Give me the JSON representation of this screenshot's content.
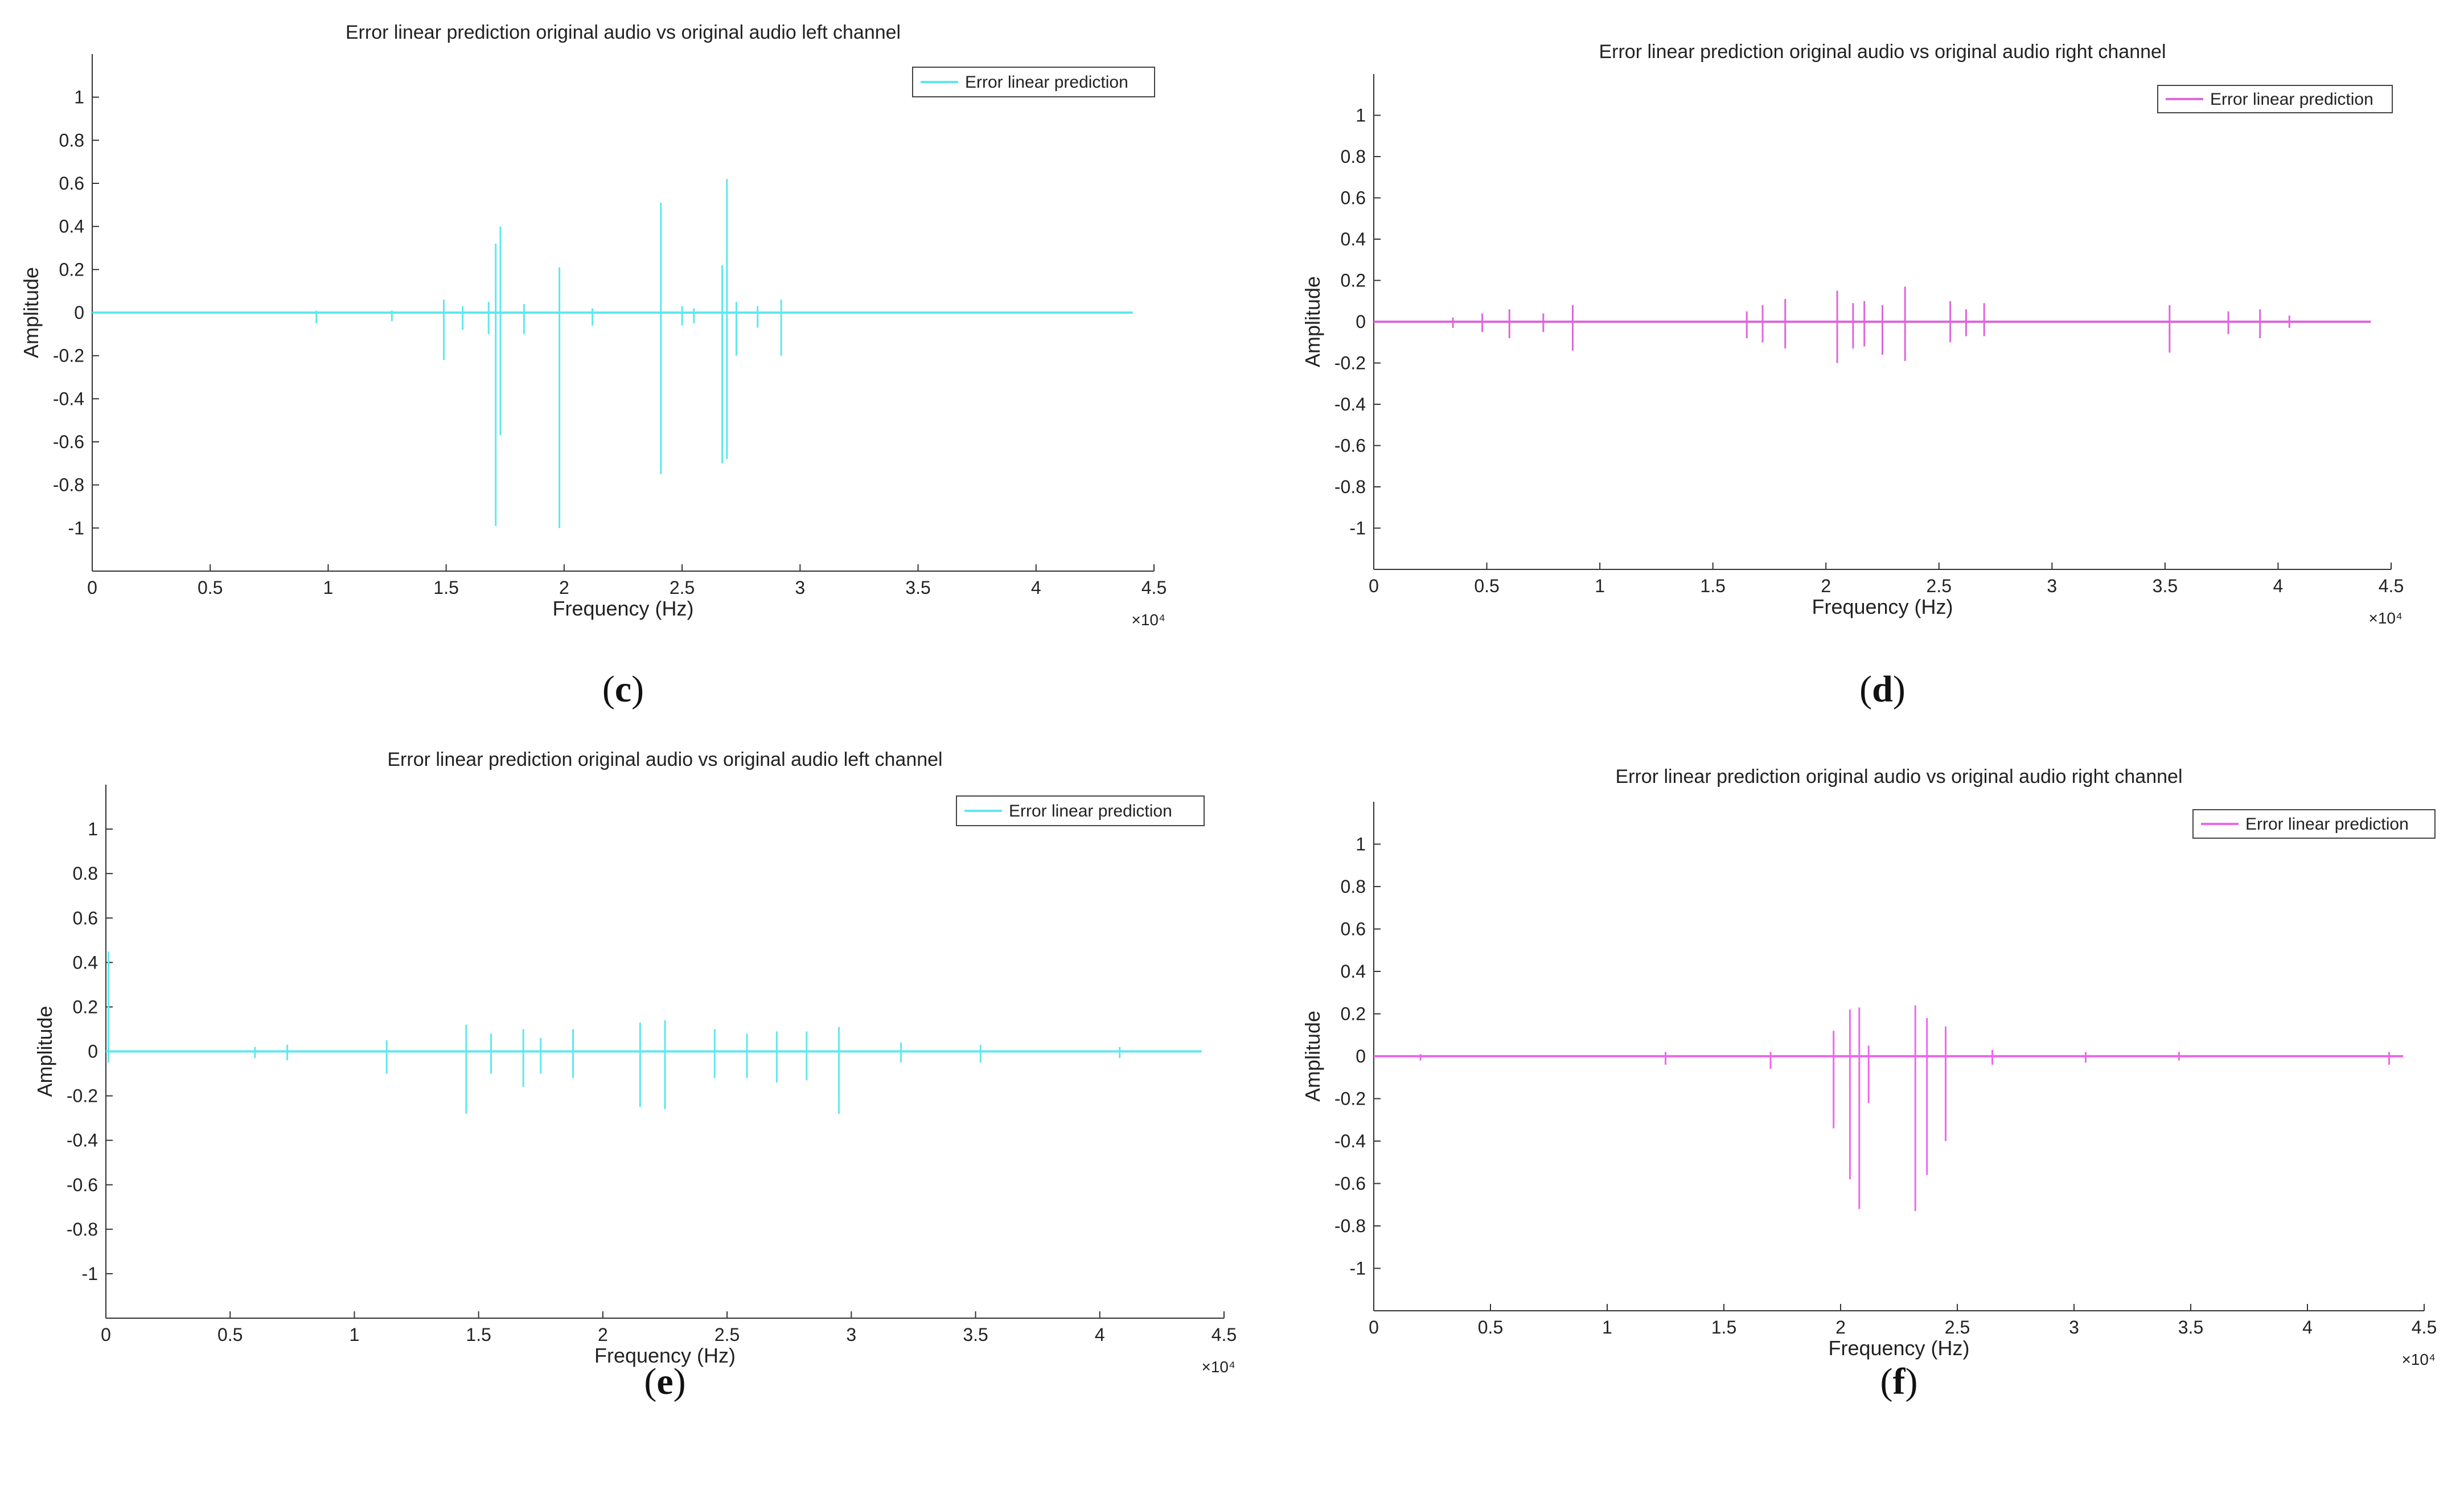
{
  "chart_data": [
    {
      "id": "c",
      "type": "line",
      "title": "Error linear prediction original audio vs original audio left channel",
      "caption": "c",
      "xlabel": "Frequency (Hz)",
      "ylabel": "Amplitude",
      "x_multiplier": "×10⁴",
      "xlim": [
        0,
        4.5
      ],
      "ylim": [
        -1.2,
        1.2
      ],
      "xticks": [
        "0",
        "0.5",
        "1",
        "1.5",
        "2",
        "2.5",
        "3",
        "3.5",
        "4",
        "4.5"
      ],
      "yticks": [
        "-1",
        "-0.8",
        "-0.6",
        "-0.4",
        "-0.2",
        "0",
        "0.2",
        "0.4",
        "0.6",
        "0.8",
        "1"
      ],
      "legend": "Error linear prediction",
      "color": "#5ee8ee",
      "x_end": 4.41,
      "spikes": [
        [
          0.95,
          -0.05,
          0.01
        ],
        [
          1.27,
          -0.04,
          0.01
        ],
        [
          1.49,
          -0.22,
          0.06
        ],
        [
          1.68,
          -0.1,
          0.05
        ],
        [
          1.71,
          -0.99,
          0.32
        ],
        [
          1.73,
          -0.57,
          0.4
        ],
        [
          1.98,
          -1.0,
          0.21
        ],
        [
          2.41,
          -0.75,
          0.51
        ],
        [
          2.67,
          -0.7,
          0.22
        ],
        [
          2.69,
          -0.68,
          0.62
        ],
        [
          2.73,
          -0.2,
          0.05
        ],
        [
          2.92,
          -0.2,
          0.06
        ],
        [
          1.57,
          -0.08,
          0.03
        ],
        [
          1.83,
          -0.1,
          0.04
        ],
        [
          2.12,
          -0.06,
          0.02
        ],
        [
          2.5,
          -0.06,
          0.03
        ],
        [
          2.82,
          -0.07,
          0.03
        ],
        [
          2.55,
          -0.05,
          0.02
        ]
      ]
    },
    {
      "id": "d",
      "type": "line",
      "title": "Error linear prediction original audio vs original audio right channel",
      "caption": "d",
      "xlabel": "Frequency (Hz)",
      "ylabel": "Amplitude",
      "x_multiplier": "×10⁴",
      "xlim": [
        0,
        4.5
      ],
      "ylim": [
        -1.2,
        1.2
      ],
      "xticks": [
        "0",
        "0.5",
        "1",
        "1.5",
        "2",
        "2.5",
        "3",
        "3.5",
        "4",
        "4.5"
      ],
      "yticks": [
        "-1",
        "-0.8",
        "-0.6",
        "-0.4",
        "-0.2",
        "0",
        "0.2",
        "0.4",
        "0.6",
        "0.8",
        "1"
      ],
      "legend": "Error linear prediction",
      "color": "#dd66dd",
      "x_end": 4.41,
      "spikes": [
        [
          0.35,
          -0.03,
          0.02
        ],
        [
          0.48,
          -0.05,
          0.04
        ],
        [
          0.6,
          -0.08,
          0.06
        ],
        [
          0.75,
          -0.05,
          0.04
        ],
        [
          0.88,
          -0.14,
          0.08
        ],
        [
          1.65,
          -0.08,
          0.05
        ],
        [
          1.72,
          -0.1,
          0.08
        ],
        [
          1.82,
          -0.13,
          0.11
        ],
        [
          2.05,
          -0.2,
          0.15
        ],
        [
          2.12,
          -0.13,
          0.09
        ],
        [
          2.17,
          -0.12,
          0.1
        ],
        [
          2.25,
          -0.16,
          0.08
        ],
        [
          2.35,
          -0.19,
          0.17
        ],
        [
          2.55,
          -0.1,
          0.1
        ],
        [
          2.62,
          -0.07,
          0.06
        ],
        [
          2.7,
          -0.07,
          0.09
        ],
        [
          3.52,
          -0.15,
          0.08
        ],
        [
          3.78,
          -0.06,
          0.05
        ],
        [
          3.92,
          -0.08,
          0.06
        ],
        [
          4.05,
          -0.03,
          0.03
        ]
      ]
    },
    {
      "id": "e",
      "type": "line",
      "title": "Error linear prediction original audio vs original audio left channel",
      "caption": "e",
      "xlabel": "Frequency (Hz)",
      "ylabel": "Amplitude",
      "x_multiplier": "×10⁴",
      "xlim": [
        0,
        4.5
      ],
      "ylim": [
        -1.2,
        1.2
      ],
      "xticks": [
        "0",
        "0.5",
        "1",
        "1.5",
        "2",
        "2.5",
        "3",
        "3.5",
        "4",
        "4.5"
      ],
      "yticks": [
        "-1",
        "-0.8",
        "-0.6",
        "-0.4",
        "-0.2",
        "0",
        "0.2",
        "0.4",
        "0.6",
        "0.8",
        "1"
      ],
      "legend": "Error linear prediction",
      "color": "#5ee8ee",
      "x_end": 4.41,
      "spikes": [
        [
          0.01,
          -0.05,
          0.45
        ],
        [
          0.6,
          -0.03,
          0.02
        ],
        [
          0.73,
          -0.04,
          0.03
        ],
        [
          1.13,
          -0.1,
          0.05
        ],
        [
          1.45,
          -0.28,
          0.12
        ],
        [
          1.55,
          -0.1,
          0.08
        ],
        [
          1.68,
          -0.16,
          0.1
        ],
        [
          1.75,
          -0.1,
          0.06
        ],
        [
          1.88,
          -0.12,
          0.1
        ],
        [
          2.15,
          -0.25,
          0.13
        ],
        [
          2.25,
          -0.26,
          0.14
        ],
        [
          2.45,
          -0.12,
          0.1
        ],
        [
          2.58,
          -0.12,
          0.08
        ],
        [
          2.7,
          -0.14,
          0.09
        ],
        [
          2.82,
          -0.13,
          0.09
        ],
        [
          2.95,
          -0.28,
          0.11
        ],
        [
          3.2,
          -0.05,
          0.04
        ],
        [
          3.52,
          -0.05,
          0.03
        ],
        [
          4.08,
          -0.03,
          0.02
        ]
      ]
    },
    {
      "id": "f",
      "type": "line",
      "title": "Error linear prediction original audio vs original audio right channel",
      "caption": "f",
      "xlabel": "Frequency (Hz)",
      "ylabel": "Amplitude",
      "x_multiplier": "×10⁴",
      "xlim": [
        0,
        4.5
      ],
      "ylim": [
        -1.2,
        1.2
      ],
      "xticks": [
        "0",
        "0.5",
        "1",
        "1.5",
        "2",
        "2.5",
        "3",
        "3.5",
        "4",
        "4.5"
      ],
      "yticks": [
        "-1",
        "-0.8",
        "-0.6",
        "-0.4",
        "-0.2",
        "0",
        "0.2",
        "0.4",
        "0.6",
        "0.8",
        "1"
      ],
      "legend": "Error linear prediction",
      "color": "#ee66ee",
      "x_end": 4.41,
      "spikes": [
        [
          0.2,
          -0.02,
          0.01
        ],
        [
          1.25,
          -0.04,
          0.02
        ],
        [
          1.7,
          -0.06,
          0.02
        ],
        [
          1.97,
          -0.34,
          0.12
        ],
        [
          2.04,
          -0.58,
          0.22
        ],
        [
          2.08,
          -0.72,
          0.23
        ],
        [
          2.12,
          -0.22,
          0.05
        ],
        [
          2.32,
          -0.73,
          0.24
        ],
        [
          2.37,
          -0.56,
          0.18
        ],
        [
          2.45,
          -0.4,
          0.14
        ],
        [
          2.65,
          -0.04,
          0.03
        ],
        [
          3.05,
          -0.03,
          0.02
        ],
        [
          3.45,
          -0.02,
          0.02
        ],
        [
          4.35,
          -0.04,
          0.02
        ]
      ]
    }
  ]
}
